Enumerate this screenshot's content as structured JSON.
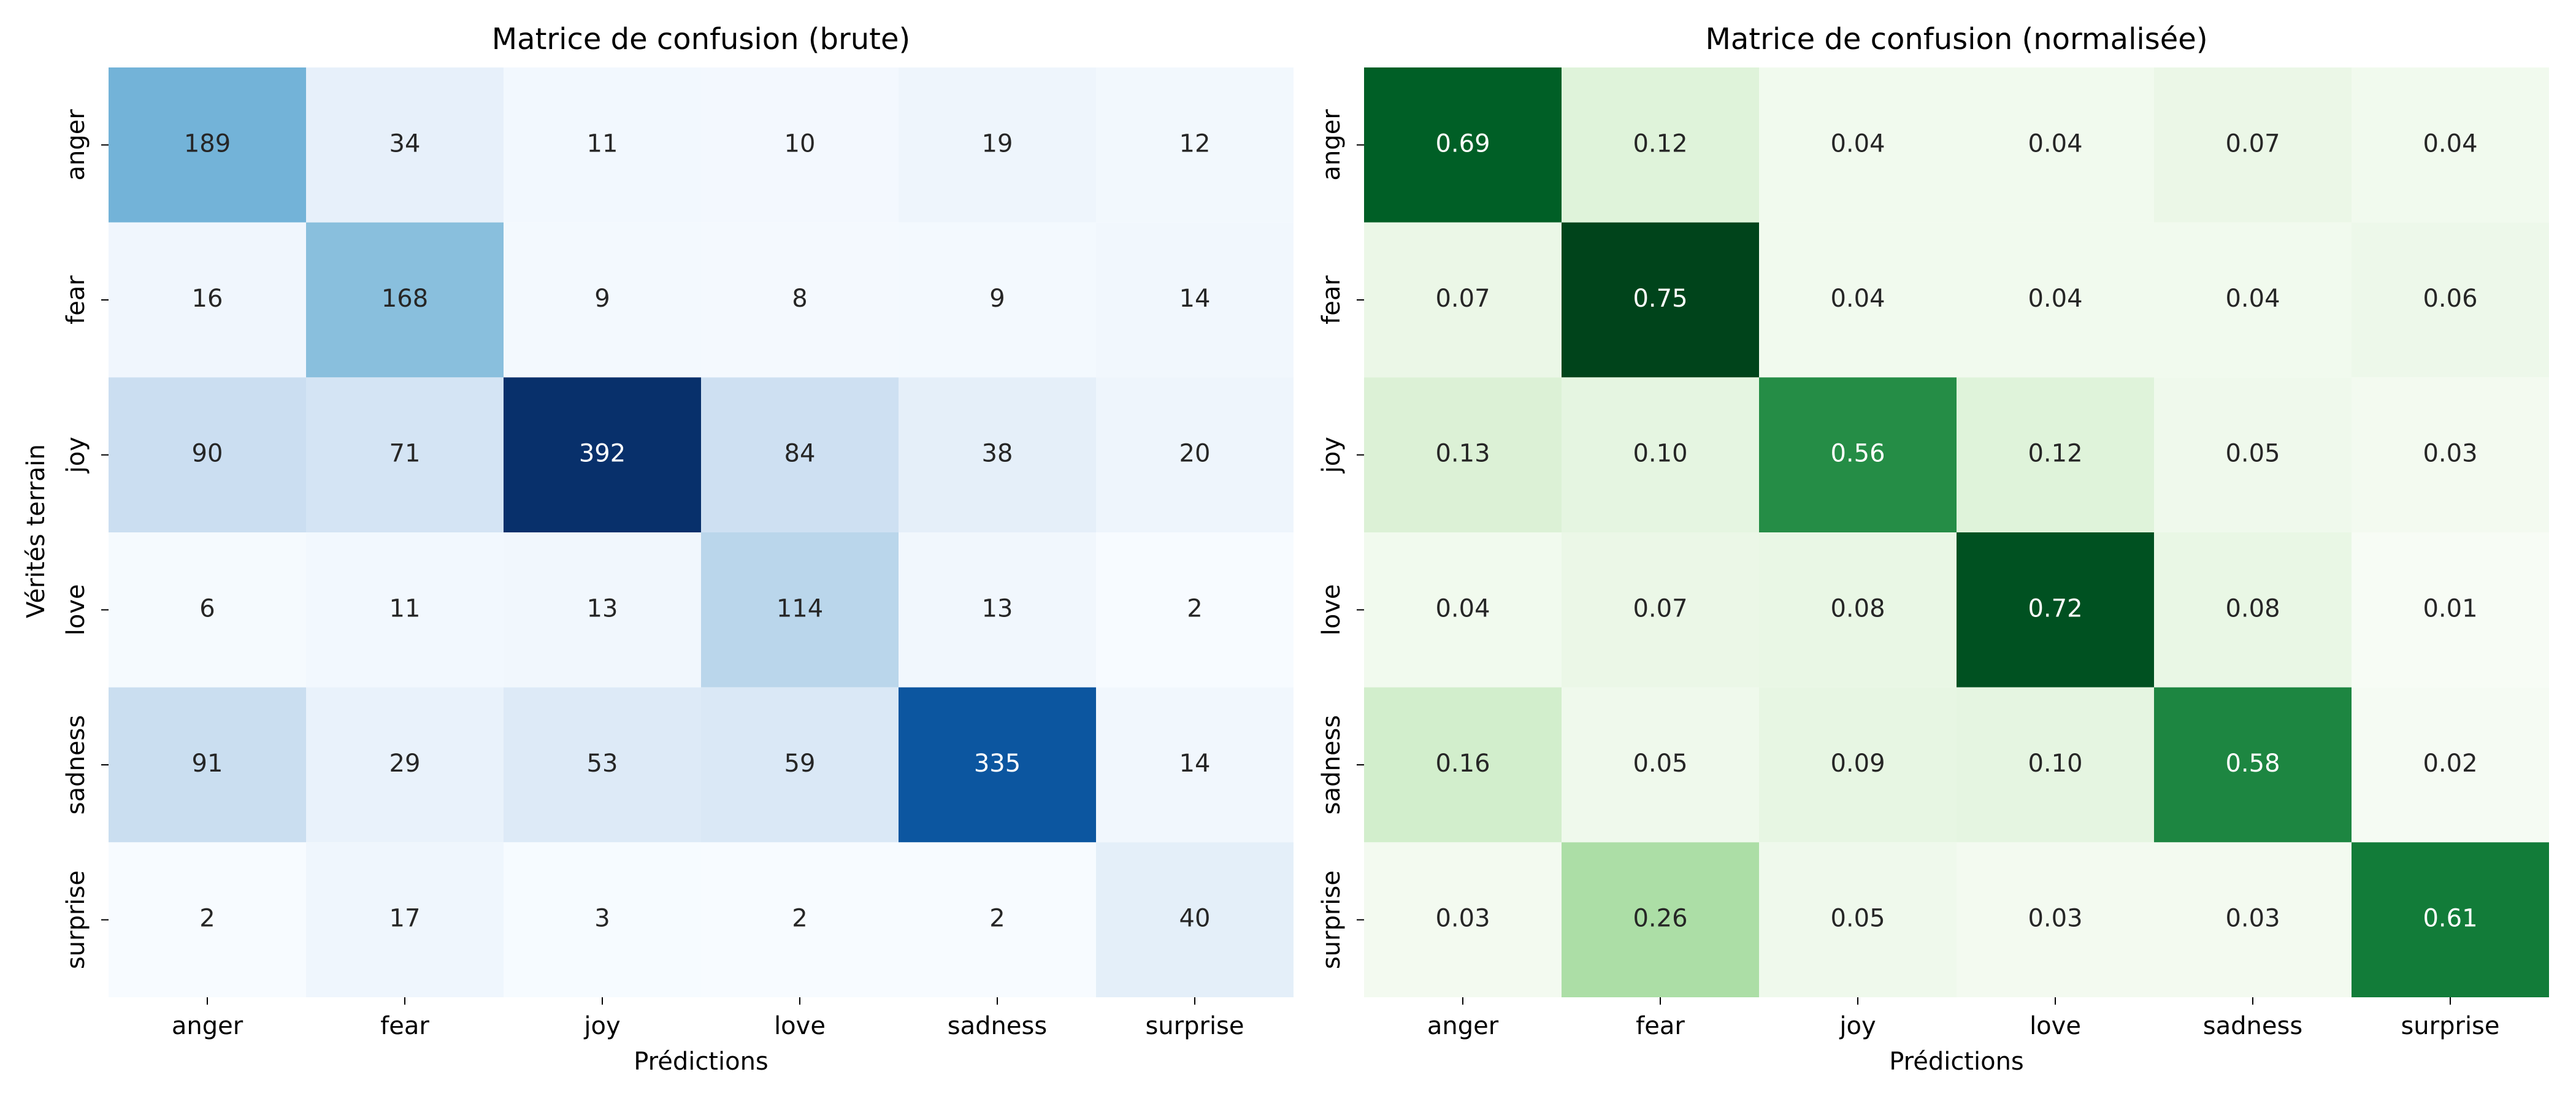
{
  "chart_data": [
    {
      "type": "heatmap",
      "title": "Matrice de confusion (brute)",
      "xlabel": "Prédictions",
      "ylabel": "Vérités terrain",
      "x_categories": [
        "anger",
        "fear",
        "joy",
        "love",
        "sadness",
        "surprise"
      ],
      "y_categories": [
        "anger",
        "fear",
        "joy",
        "love",
        "sadness",
        "surprise"
      ],
      "values": [
        [
          189,
          34,
          11,
          10,
          19,
          12
        ],
        [
          16,
          168,
          9,
          8,
          9,
          14
        ],
        [
          90,
          71,
          392,
          84,
          38,
          20
        ],
        [
          6,
          11,
          13,
          114,
          13,
          2
        ],
        [
          91,
          29,
          53,
          59,
          335,
          14
        ],
        [
          2,
          17,
          3,
          2,
          2,
          40
        ]
      ],
      "value_labels": [
        [
          "189",
          "34",
          "11",
          "10",
          "19",
          "12"
        ],
        [
          "16",
          "168",
          "9",
          "8",
          "9",
          "14"
        ],
        [
          "90",
          "71",
          "392",
          "84",
          "38",
          "20"
        ],
        [
          "6",
          "11",
          "13",
          "114",
          "13",
          "2"
        ],
        [
          "91",
          "29",
          "53",
          "59",
          "335",
          "14"
        ],
        [
          "2",
          "17",
          "3",
          "2",
          "2",
          "40"
        ]
      ],
      "colormap": "Blues",
      "colorbar": false
    },
    {
      "type": "heatmap",
      "title": "Matrice de confusion (normalisée)",
      "xlabel": "Prédictions",
      "ylabel": "",
      "x_categories": [
        "anger",
        "fear",
        "joy",
        "love",
        "sadness",
        "surprise"
      ],
      "y_categories": [
        "anger",
        "fear",
        "joy",
        "love",
        "sadness",
        "surprise"
      ],
      "values": [
        [
          0.69,
          0.12,
          0.04,
          0.04,
          0.07,
          0.04
        ],
        [
          0.07,
          0.75,
          0.04,
          0.04,
          0.04,
          0.06
        ],
        [
          0.13,
          0.1,
          0.56,
          0.12,
          0.05,
          0.03
        ],
        [
          0.04,
          0.07,
          0.08,
          0.72,
          0.08,
          0.01
        ],
        [
          0.16,
          0.05,
          0.09,
          0.1,
          0.58,
          0.02
        ],
        [
          0.03,
          0.26,
          0.05,
          0.03,
          0.03,
          0.61
        ]
      ],
      "value_labels": [
        [
          "0.69",
          "0.12",
          "0.04",
          "0.04",
          "0.07",
          "0.04"
        ],
        [
          "0.07",
          "0.75",
          "0.04",
          "0.04",
          "0.04",
          "0.06"
        ],
        [
          "0.13",
          "0.10",
          "0.56",
          "0.12",
          "0.05",
          "0.03"
        ],
        [
          "0.04",
          "0.07",
          "0.08",
          "0.72",
          "0.08",
          "0.01"
        ],
        [
          "0.16",
          "0.05",
          "0.09",
          "0.10",
          "0.58",
          "0.02"
        ],
        [
          "0.03",
          "0.26",
          "0.05",
          "0.03",
          "0.03",
          "0.61"
        ]
      ],
      "colormap": "Greens",
      "colorbar": false
    }
  ]
}
